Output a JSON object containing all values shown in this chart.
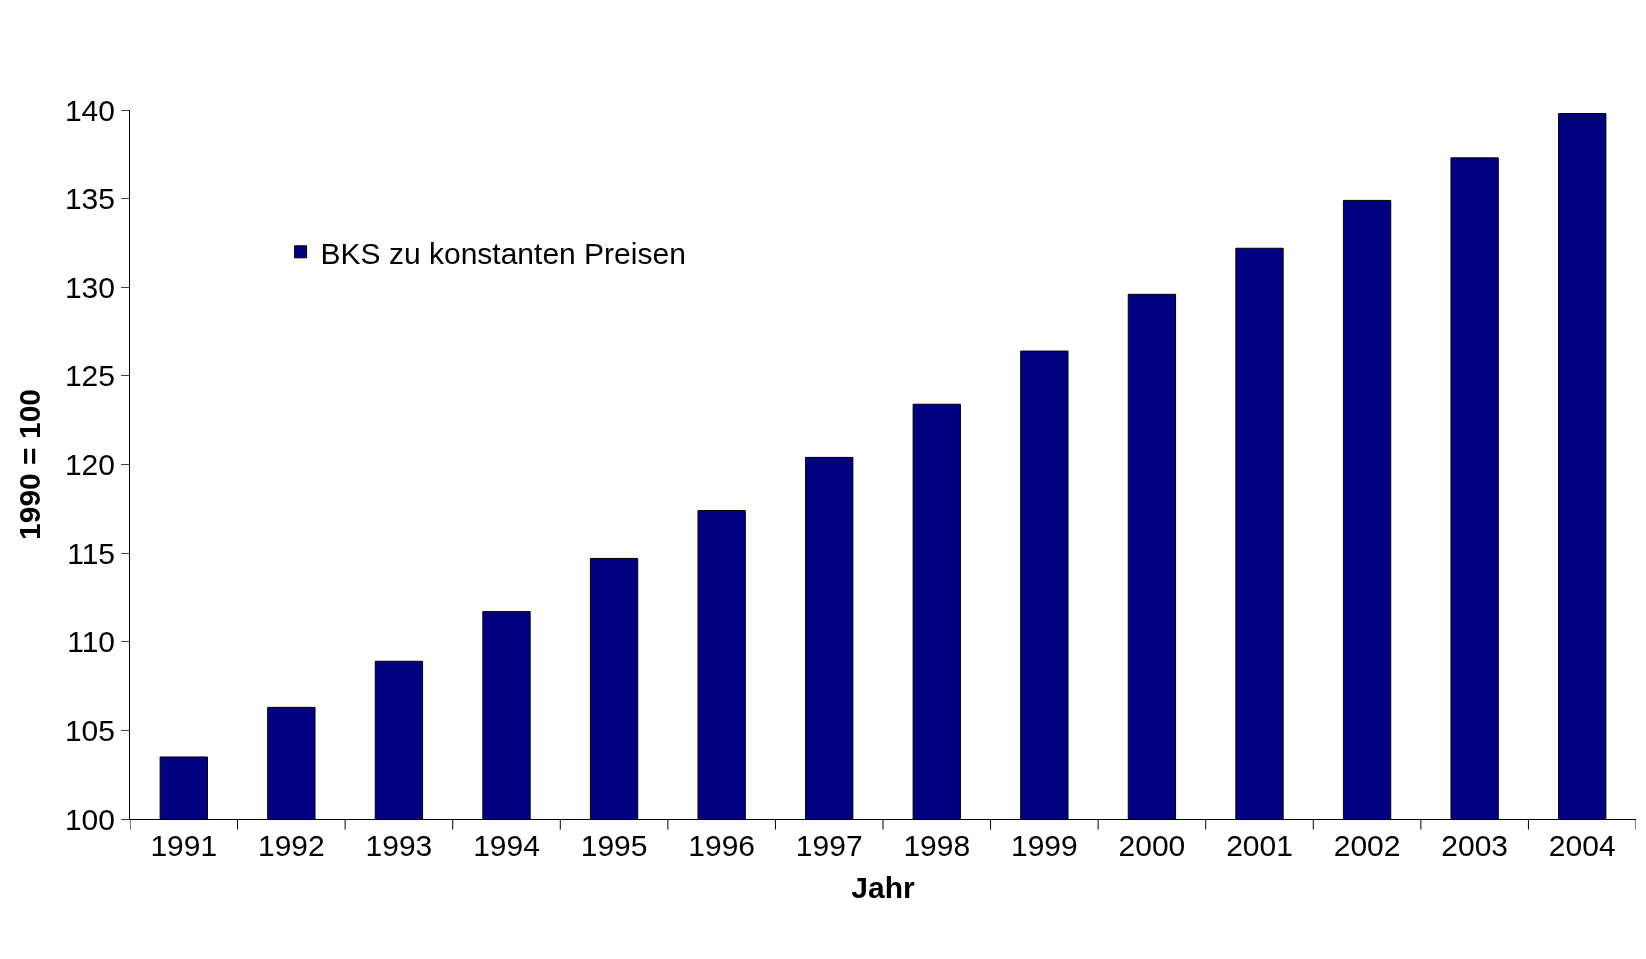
{
  "chart_data": {
    "type": "bar",
    "xlabel": "Jahr",
    "ylabel": "1990 = 100",
    "categories": [
      "1991",
      "1992",
      "1993",
      "1994",
      "1995",
      "1996",
      "1997",
      "1998",
      "1999",
      "2000",
      "2001",
      "2002",
      "2003",
      "2004"
    ],
    "series": [
      {
        "name": "BKS zu konstanten Preisen",
        "color": "#000080",
        "values": [
          103.5,
          106.3,
          108.9,
          111.7,
          114.7,
          117.4,
          120.4,
          123.4,
          126.4,
          129.6,
          132.2,
          134.9,
          137.3,
          139.8
        ]
      }
    ],
    "ylim": [
      100,
      140
    ],
    "yticks": [
      100,
      105,
      110,
      115,
      120,
      125,
      130,
      135,
      140
    ],
    "grid": false,
    "legend": "top left"
  }
}
